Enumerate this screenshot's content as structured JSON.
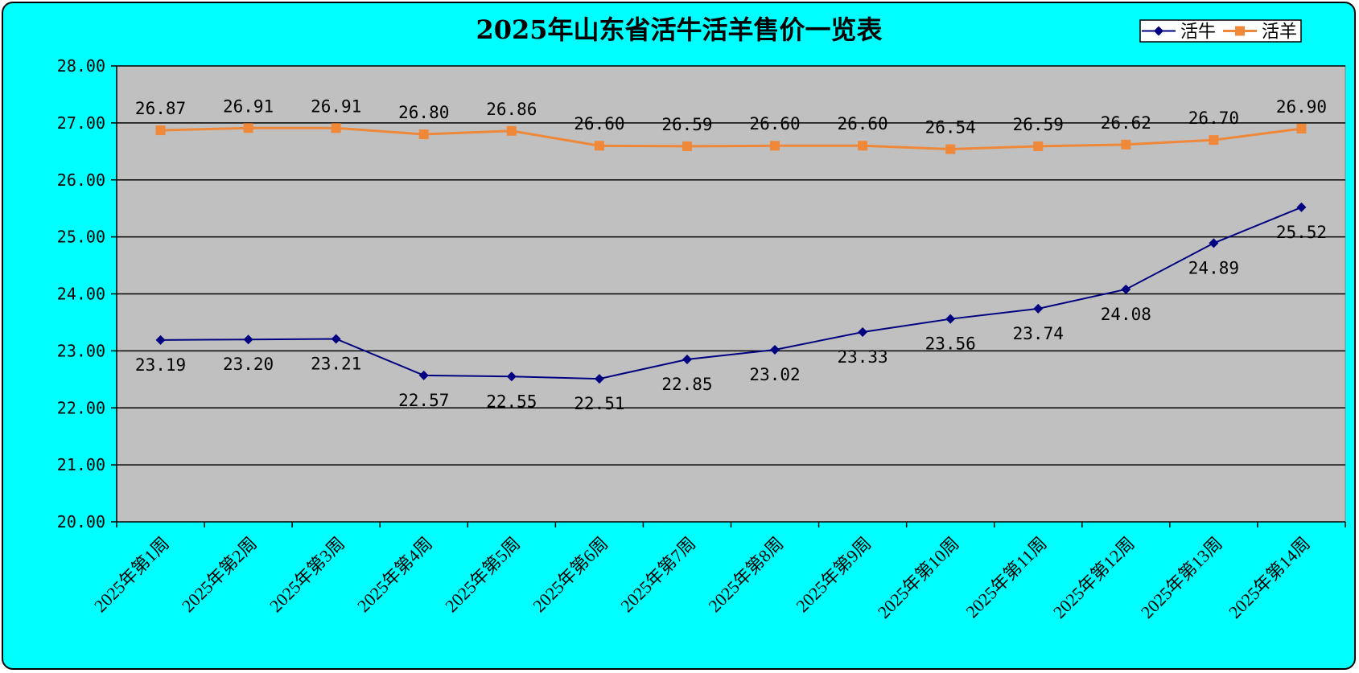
{
  "chart_data": {
    "type": "line",
    "title": "2025年山东省活牛活羊售价一览表",
    "categories": [
      "2025年第1周",
      "2025年第2周",
      "2025年第3周",
      "2025年第4周",
      "2025年第5周",
      "2025年第6周",
      "2025年第7周",
      "2025年第8周",
      "2025年第9周",
      "2025年第10周",
      "2025年第11周",
      "2025年第12周",
      "2025年第13周",
      "2025年第14周"
    ],
    "ylim": [
      20,
      28
    ],
    "yticks": [
      "20.00",
      "21.00",
      "22.00",
      "23.00",
      "24.00",
      "25.00",
      "26.00",
      "27.00",
      "28.00"
    ],
    "grid": true,
    "legend_position": "top-right",
    "series": [
      {
        "name": "活牛",
        "color": "#000080",
        "marker": "diamond",
        "values": [
          23.19,
          23.2,
          23.21,
          22.57,
          22.55,
          22.51,
          22.85,
          23.02,
          23.33,
          23.56,
          23.74,
          24.08,
          24.89,
          25.52
        ],
        "labels": [
          "23.19",
          "23.20",
          "23.21",
          "22.57",
          "22.55",
          "22.51",
          "22.85",
          "23.02",
          "23.33",
          "23.56",
          "23.74",
          "24.08",
          "24.89",
          "25.52"
        ],
        "label_position": "below"
      },
      {
        "name": "活羊",
        "color": "#f0883a",
        "marker": "square",
        "values": [
          26.87,
          26.91,
          26.91,
          26.8,
          26.86,
          26.6,
          26.59,
          26.6,
          26.6,
          26.54,
          26.59,
          26.62,
          26.7,
          26.9
        ],
        "labels": [
          "26.87",
          "26.91",
          "26.91",
          "26.80",
          "26.86",
          "26.60",
          "26.59",
          "26.60",
          "26.60",
          "26.54",
          "26.59",
          "26.62",
          "26.70",
          "26.90"
        ],
        "label_position": "above"
      }
    ],
    "colors": {
      "background": "#00ffff",
      "plot_area": "#c0c0c0",
      "gridline": "#000000"
    }
  }
}
